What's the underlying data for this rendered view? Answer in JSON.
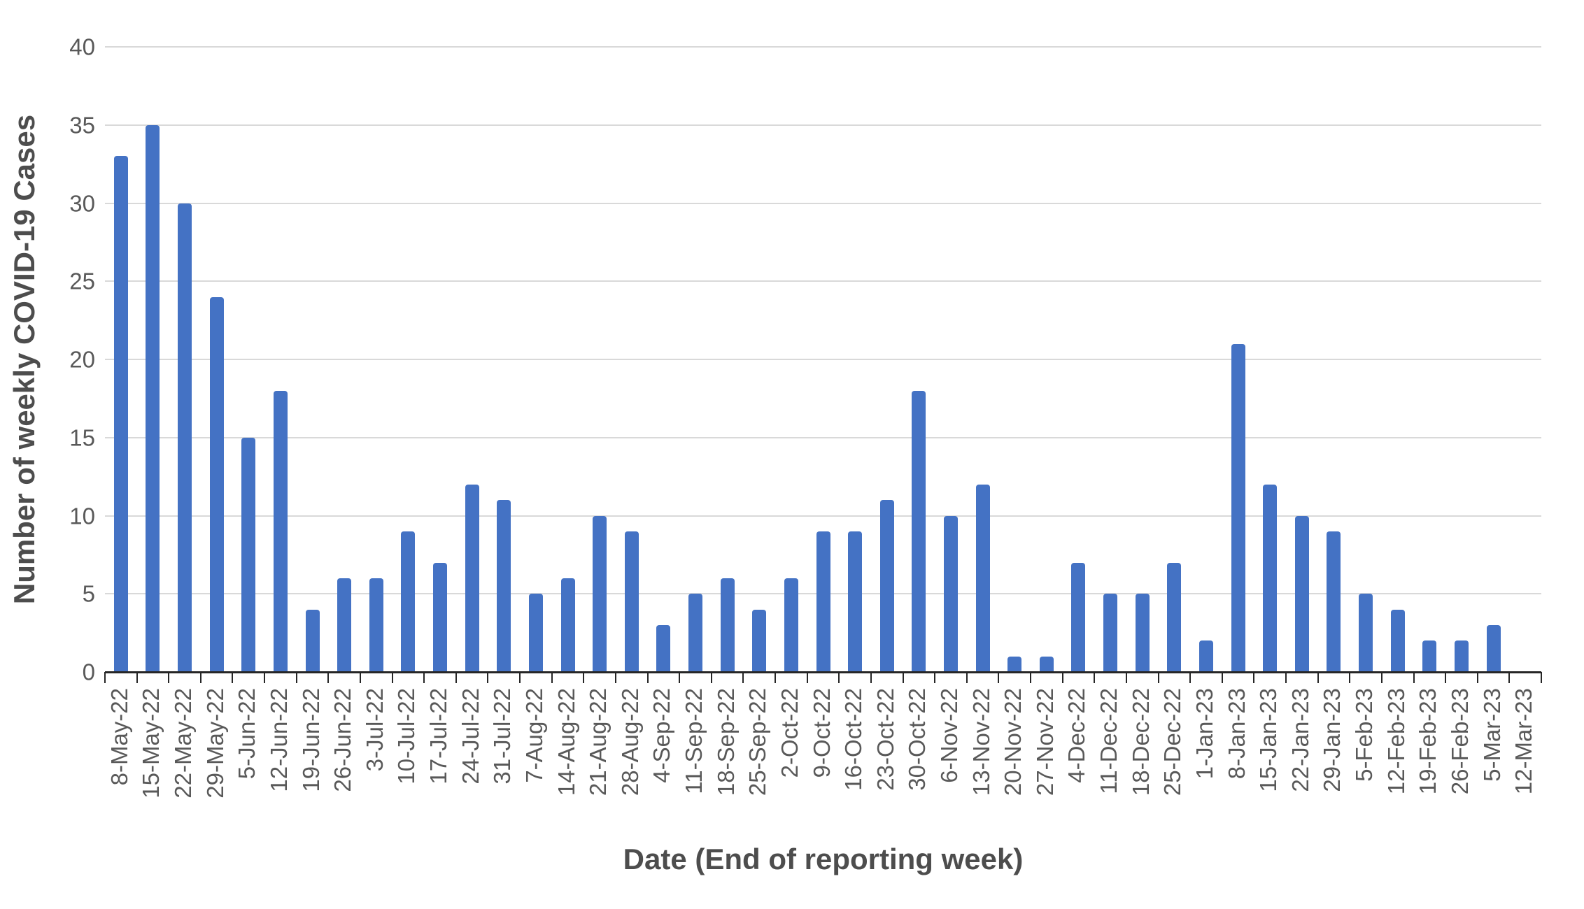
{
  "chart_data": {
    "type": "bar",
    "title": "",
    "xlabel": "Date (End of reporting week)",
    "ylabel": "Number of weekly COVID-19 Cases",
    "categories": [
      "8-May-22",
      "15-May-22",
      "22-May-22",
      "29-May-22",
      "5-Jun-22",
      "12-Jun-22",
      "19-Jun-22",
      "26-Jun-22",
      "3-Jul-22",
      "10-Jul-22",
      "17-Jul-22",
      "24-Jul-22",
      "31-Jul-22",
      "7-Aug-22",
      "14-Aug-22",
      "21-Aug-22",
      "28-Aug-22",
      "4-Sep-22",
      "11-Sep-22",
      "18-Sep-22",
      "25-Sep-22",
      "2-Oct-22",
      "9-Oct-22",
      "16-Oct-22",
      "23-Oct-22",
      "30-Oct-22",
      "6-Nov-22",
      "13-Nov-22",
      "20-Nov-22",
      "27-Nov-22",
      "4-Dec-22",
      "11-Dec-22",
      "18-Dec-22",
      "25-Dec-22",
      "1-Jan-23",
      "8-Jan-23",
      "15-Jan-23",
      "22-Jan-23",
      "29-Jan-23",
      "5-Feb-23",
      "12-Feb-23",
      "19-Feb-23",
      "26-Feb-23",
      "5-Mar-23",
      "12-Mar-23"
    ],
    "values": [
      33,
      35,
      30,
      24,
      15,
      18,
      4,
      6,
      6,
      9,
      7,
      12,
      11,
      5,
      6,
      10,
      9,
      3,
      5,
      6,
      4,
      6,
      9,
      9,
      11,
      18,
      10,
      12,
      1,
      1,
      7,
      5,
      5,
      7,
      2,
      21,
      12,
      10,
      9,
      5,
      4,
      2,
      2,
      3,
      0
    ],
    "y_ticks": [
      0,
      5,
      10,
      15,
      20,
      25,
      30,
      35,
      40
    ],
    "ylim": [
      0,
      40
    ],
    "grid": "horizontal",
    "legend": "none",
    "colors": {
      "bar": "#4472c4",
      "gridline": "#d9d9d9",
      "axis_line": "#262626",
      "tick_label": "#595959",
      "axis_title": "#4d4d4d",
      "background": "#ffffff"
    }
  }
}
